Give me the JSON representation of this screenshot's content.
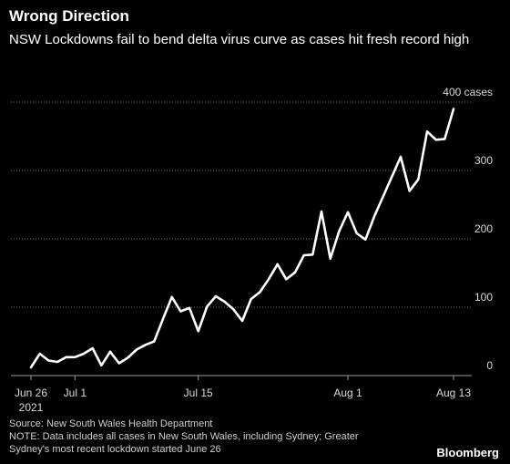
{
  "header": {
    "title": "Wrong Direction",
    "subtitle": "NSW Lockdowns fail to bend delta virus curve as cases hit fresh record high"
  },
  "footer": {
    "source": "Source: New South Wales Health Department",
    "note": "NOTE: Data includes all cases in New South Wales, including Sydney; Greater Sydney's most recent lockdown started June 26",
    "brand": "Bloomberg"
  },
  "colors": {
    "background": "#000000",
    "line": "#ffffff",
    "grid": "#6e6e6e"
  },
  "chart_data": {
    "type": "line",
    "title": "Wrong Direction",
    "subtitle": "NSW Lockdowns fail to bend delta virus curve as cases hit fresh record high",
    "x_tick_labels": [
      {
        "date": "2021-06-26",
        "label": "Jun 26",
        "sublabel": "2021"
      },
      {
        "date": "2021-07-01",
        "label": "Jul 1",
        "sublabel": ""
      },
      {
        "date": "2021-07-15",
        "label": "Jul 15",
        "sublabel": ""
      },
      {
        "date": "2021-08-01",
        "label": "Aug 1",
        "sublabel": ""
      },
      {
        "date": "2021-08-13",
        "label": "Aug 13",
        "sublabel": ""
      }
    ],
    "y_ticks": [
      0,
      100,
      200,
      300,
      400
    ],
    "y_tick_labels": [
      "0",
      "100",
      "200",
      "300",
      "400 cases"
    ],
    "ylim": [
      0,
      400
    ],
    "xlim": [
      "2021-06-26",
      "2021-08-13"
    ],
    "grid": true,
    "series": [
      {
        "x": [
          "2021-06-26",
          "2021-06-27",
          "2021-06-28",
          "2021-06-29",
          "2021-06-30",
          "2021-07-01",
          "2021-07-02",
          "2021-07-03",
          "2021-07-04",
          "2021-07-05",
          "2021-07-06",
          "2021-07-07",
          "2021-07-08",
          "2021-07-09",
          "2021-07-10",
          "2021-07-11",
          "2021-07-12",
          "2021-07-13",
          "2021-07-14",
          "2021-07-15",
          "2021-07-16",
          "2021-07-17",
          "2021-07-18",
          "2021-07-19",
          "2021-07-20",
          "2021-07-21",
          "2021-07-22",
          "2021-07-23",
          "2021-07-24",
          "2021-07-25",
          "2021-07-26",
          "2021-07-27",
          "2021-07-28",
          "2021-07-29",
          "2021-07-30",
          "2021-07-31",
          "2021-08-01",
          "2021-08-02",
          "2021-08-03",
          "2021-08-04",
          "2021-08-05",
          "2021-08-06",
          "2021-08-07",
          "2021-08-08",
          "2021-08-09",
          "2021-08-10",
          "2021-08-11",
          "2021-08-12",
          "2021-08-13"
        ],
        "values": [
          12,
          32,
          22,
          20,
          27,
          27,
          32,
          40,
          15,
          35,
          18,
          26,
          38,
          45,
          50,
          83,
          115,
          94,
          99,
          65,
          101,
          116,
          108,
          97,
          80,
          112,
          122,
          141,
          163,
          141,
          151,
          176,
          177,
          240,
          171,
          211,
          239,
          208,
          199,
          233,
          262,
          291,
          320,
          270,
          287,
          357,
          345,
          346,
          390
        ]
      }
    ]
  }
}
